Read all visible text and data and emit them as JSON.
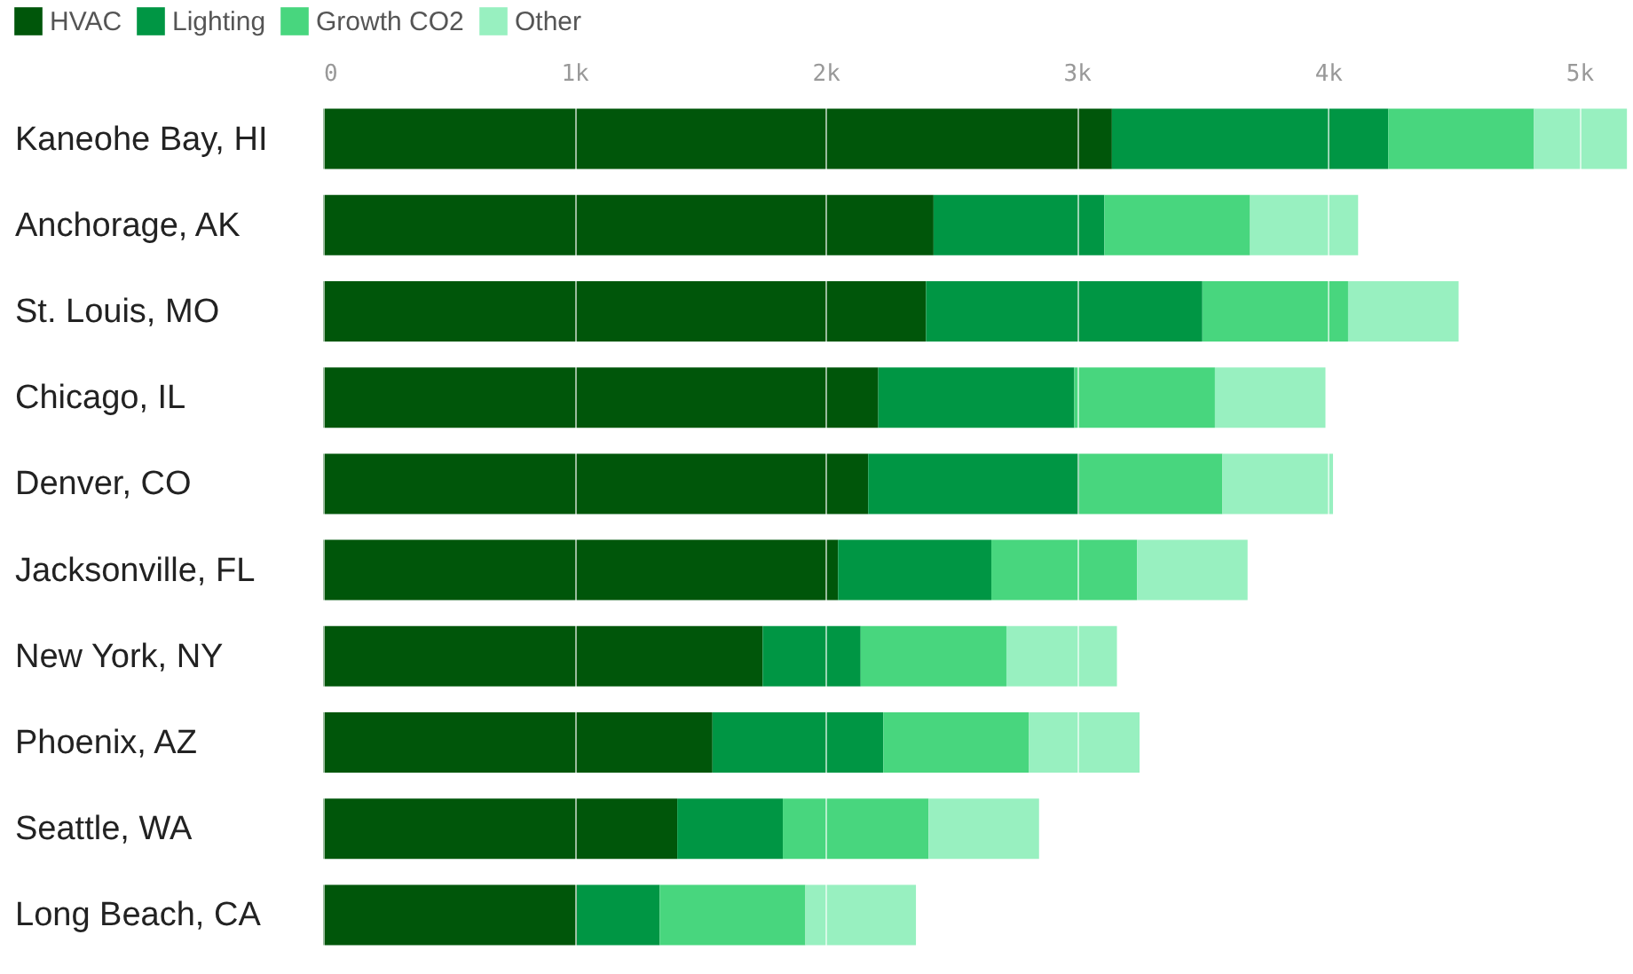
{
  "chart_data": {
    "type": "bar",
    "orientation": "horizontal",
    "stacked": true,
    "categories": [
      "Kaneohe Bay, HI",
      "Anchorage, AK",
      "St. Louis, MO",
      "Chicago, IL",
      "Denver, CO",
      "Jacksonville, FL",
      "New York, NY",
      "Phoenix, AZ",
      "Seattle, WA",
      "Long Beach, CA"
    ],
    "series": [
      {
        "name": "HVAC",
        "color": "#00560a",
        "values": [
          3140,
          2430,
          2400,
          2210,
          2170,
          2050,
          1750,
          1550,
          1410,
          1010
        ]
      },
      {
        "name": "Lighting",
        "color": "#009644",
        "values": [
          1100,
          680,
          1100,
          780,
          840,
          610,
          390,
          680,
          420,
          330
        ]
      },
      {
        "name": "Growth CO2",
        "color": "#48d67e",
        "values": [
          580,
          580,
          580,
          560,
          570,
          580,
          580,
          580,
          580,
          580
        ]
      },
      {
        "name": "Other",
        "color": "#98f0c0",
        "values": [
          370,
          430,
          440,
          440,
          440,
          440,
          440,
          440,
          440,
          440
        ]
      }
    ],
    "xlim": [
      0,
      5200
    ],
    "xticks": [
      0,
      {
        "value": 1000,
        "label": "1k"
      },
      {
        "value": 2000,
        "label": "2k"
      },
      {
        "value": 3000,
        "label": "3k"
      },
      {
        "value": 4000,
        "label": "4k"
      },
      {
        "value": 5000,
        "label": "5k"
      }
    ],
    "grid": "x",
    "legend": "top left"
  }
}
